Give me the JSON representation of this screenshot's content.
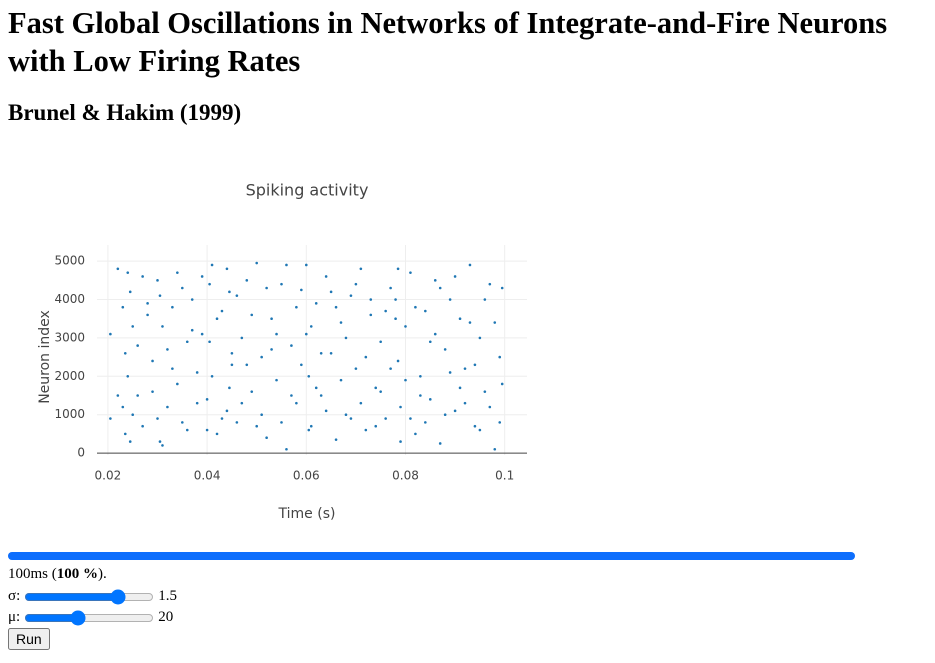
{
  "header": {
    "title": "Fast Global Oscillations in Networks of Integrate-and-Fire Neurons with Low Firing Rates",
    "subtitle": "Brunel & Hakim (1999)"
  },
  "chart_data": {
    "type": "scatter",
    "title": "Spiking activity",
    "x_label": "Time (s)",
    "y_label": "Neuron index",
    "color": "#1f77b4",
    "grid": true,
    "xlim": [
      0.0178,
      0.1045
    ],
    "ylim": [
      -50,
      5420
    ],
    "xticks": [
      0.02,
      0.04,
      0.06,
      0.08,
      0.1
    ],
    "yticks": [
      0,
      1000,
      2000,
      3000,
      4000,
      5000
    ],
    "x": [
      0.0205,
      0.022,
      0.023,
      0.0235,
      0.024,
      0.0245,
      0.025,
      0.026,
      0.027,
      0.028,
      0.029,
      0.03,
      0.0305,
      0.031,
      0.032,
      0.033,
      0.034,
      0.035,
      0.036,
      0.037,
      0.038,
      0.039,
      0.04,
      0.0405,
      0.041,
      0.042,
      0.043,
      0.044,
      0.0445,
      0.045,
      0.046,
      0.047,
      0.048,
      0.049,
      0.05,
      0.051,
      0.052,
      0.053,
      0.054,
      0.055,
      0.056,
      0.057,
      0.058,
      0.059,
      0.06,
      0.0605,
      0.061,
      0.062,
      0.063,
      0.064,
      0.065,
      0.066,
      0.067,
      0.068,
      0.069,
      0.07,
      0.071,
      0.072,
      0.073,
      0.074,
      0.075,
      0.076,
      0.077,
      0.078,
      0.0785,
      0.079,
      0.08,
      0.081,
      0.082,
      0.083,
      0.084,
      0.085,
      0.086,
      0.087,
      0.088,
      0.089,
      0.09,
      0.091,
      0.092,
      0.093,
      0.094,
      0.095,
      0.096,
      0.097,
      0.098,
      0.099,
      0.0995,
      0.0205,
      0.022,
      0.023,
      0.0235,
      0.024,
      0.0245,
      0.025,
      0.026,
      0.027,
      0.028,
      0.029,
      0.03,
      0.0305,
      0.031,
      0.032,
      0.033,
      0.034,
      0.035,
      0.036,
      0.037,
      0.038,
      0.039,
      0.04,
      0.0405,
      0.041,
      0.042,
      0.043,
      0.044,
      0.0445,
      0.045,
      0.046,
      0.047,
      0.048,
      0.049,
      0.05,
      0.051,
      0.052,
      0.053,
      0.054,
      0.055,
      0.056,
      0.057,
      0.058,
      0.059,
      0.06,
      0.0605,
      0.061,
      0.062,
      0.063,
      0.064,
      0.065,
      0.066,
      0.067,
      0.068,
      0.069,
      0.07,
      0.071,
      0.072,
      0.073,
      0.074,
      0.075,
      0.076,
      0.077,
      0.078,
      0.0785,
      0.079,
      0.08,
      0.081,
      0.082,
      0.083,
      0.084,
      0.085,
      0.086,
      0.087,
      0.088,
      0.089,
      0.09,
      0.091,
      0.092,
      0.093,
      0.094,
      0.095,
      0.096,
      0.097,
      0.098,
      0.099,
      0.0995
    ],
    "values": [
      3100,
      4800,
      1200,
      2600,
      4700,
      300,
      3300,
      1500,
      4600,
      3600,
      2400,
      900,
      4100,
      200,
      2700,
      3800,
      1800,
      4300,
      600,
      3200,
      2100,
      4600,
      1400,
      2900,
      4900,
      500,
      3700,
      1100,
      4200,
      2300,
      800,
      3000,
      4500,
      1600,
      4950,
      2500,
      400,
      3500,
      1900,
      4400,
      100,
      2800,
      1300,
      4250,
      3100,
      2000,
      700,
      3900,
      1500,
      4600,
      2600,
      350,
      3400,
      1000,
      4100,
      2200,
      4800,
      600,
      3600,
      1700,
      2900,
      900,
      4300,
      4000,
      2400,
      1200,
      3300,
      4700,
      500,
      2000,
      3700,
      1400,
      4500,
      250,
      2700,
      4000,
      1100,
      3500,
      2200,
      4900,
      700,
      3000,
      1600,
      4400,
      100,
      2500,
      1800,
      900,
      1500,
      3800,
      500,
      2000,
      4200,
      1000,
      2800,
      700,
      3900,
      1600,
      4500,
      300,
      3300,
      1200,
      2200,
      4700,
      800,
      2900,
      4000,
      1300,
      3100,
      600,
      4400,
      2000,
      3500,
      900,
      4800,
      1700,
      2600,
      4100,
      1300,
      2300,
      3600,
      700,
      1000,
      4300,
      2700,
      3100,
      800,
      4900,
      1500,
      3800,
      2300,
      4900,
      600,
      3300,
      1700,
      2600,
      1100,
      4200,
      3800,
      1900,
      3000,
      900,
      4400,
      1300,
      2500,
      4000,
      700,
      1600,
      3700,
      2200,
      3500,
      4800,
      300,
      1900,
      900,
      3800,
      1500,
      800,
      2900,
      3100,
      4300,
      1000,
      2100,
      4600,
      1700,
      1300,
      3400,
      2300,
      600,
      4000,
      1200,
      3400,
      800,
      4300
    ]
  },
  "progress": {
    "value": 100,
    "label": "100 %"
  },
  "status": {
    "before": "100ms (",
    "after": ")."
  },
  "controls": {
    "sigma": {
      "label": "σ:",
      "value": 1.5,
      "min": 0,
      "max": 2
    },
    "mu": {
      "label": "μ:",
      "value": 20,
      "min": 0,
      "max": 50
    },
    "run": "Run"
  }
}
